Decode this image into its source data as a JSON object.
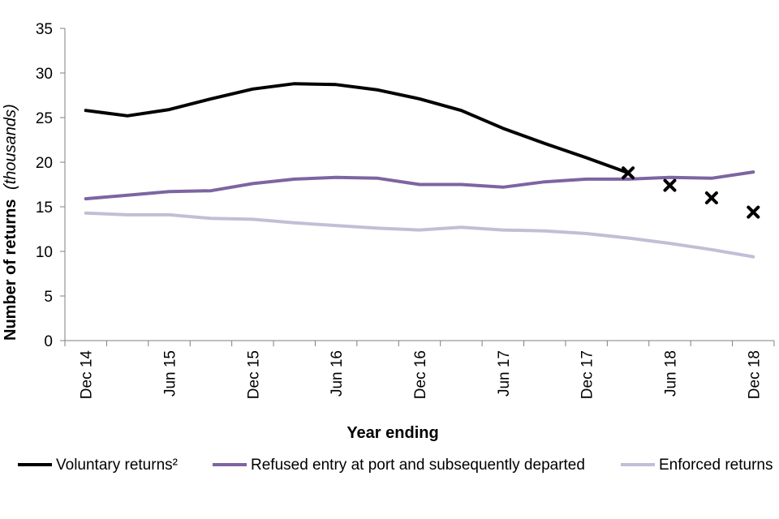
{
  "chart_data": {
    "type": "line",
    "title": "",
    "xlabel": "Year ending",
    "ylabel": "Number of returns",
    "ylabel_italic": "(thousands)",
    "ylim": [
      0,
      35
    ],
    "yticks": [
      0,
      5,
      10,
      15,
      20,
      25,
      30,
      35
    ],
    "x": [
      "Dec 14",
      "Mar 15",
      "Jun 15",
      "Sep 15",
      "Dec 15",
      "Mar 16",
      "Jun 16",
      "Sep 16",
      "Dec 16",
      "Mar 17",
      "Jun 17",
      "Sep 17",
      "Dec 17",
      "Mar 18",
      "Jun 18",
      "Sep 18",
      "Dec 18"
    ],
    "xtick_labels": [
      "Dec 14",
      "",
      "Jun 15",
      "",
      "Dec 15",
      "",
      "Jun 16",
      "",
      "Dec 16",
      "",
      "Jun 17",
      "",
      "Dec 17",
      "",
      "Jun 18",
      "",
      "Dec 18"
    ],
    "series": [
      {
        "name": "Voluntary returns²",
        "color": "#000000",
        "values": [
          25.8,
          25.2,
          25.9,
          27.1,
          28.2,
          28.8,
          28.7,
          28.1,
          27.1,
          25.8,
          23.8,
          22.1,
          20.5,
          18.8,
          null,
          null,
          null
        ],
        "markers": [
          null,
          null,
          null,
          null,
          null,
          null,
          null,
          null,
          null,
          null,
          null,
          null,
          null,
          18.8,
          17.4,
          16.0,
          14.4
        ],
        "marker": "x"
      },
      {
        "name": "Refused entry at port and subsequently departed",
        "color": "#7e64a1",
        "values": [
          15.9,
          16.3,
          16.7,
          16.8,
          17.6,
          18.1,
          18.3,
          18.2,
          17.5,
          17.5,
          17.2,
          17.8,
          18.1,
          18.1,
          18.3,
          18.2,
          18.9
        ]
      },
      {
        "name": "Enforced returns",
        "color": "#c4bdd6",
        "values": [
          14.3,
          14.1,
          14.1,
          13.7,
          13.6,
          13.2,
          12.9,
          12.6,
          12.4,
          12.7,
          12.4,
          12.3,
          12.0,
          11.5,
          10.9,
          10.2,
          9.4
        ]
      }
    ],
    "legend_position": "bottom"
  }
}
